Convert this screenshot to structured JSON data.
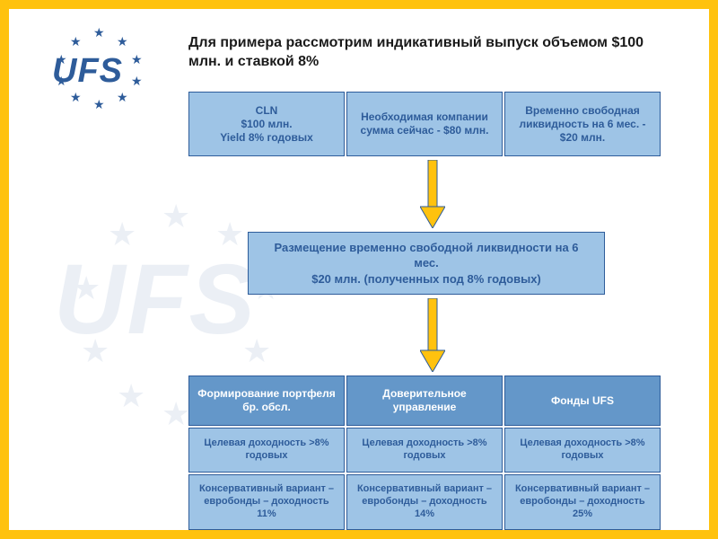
{
  "title": "Для примера рассмотрим индикативный выпуск объемом $100 млн. и ставкой 8%",
  "logo_text": "UFS",
  "colors": {
    "accent": "#ffc20e",
    "primary": "#2e5c9a",
    "box_light": "#9ec4e6",
    "box_dark": "#6497c9",
    "text": "#1a1a1a"
  },
  "row1": [
    {
      "text": "CLN\n$100 млн.\nYield 8% годовых"
    },
    {
      "text": "Необходимая компании сумма сейчас - $80 млн."
    },
    {
      "text": "Временно свободная ликвидность на 6 мес. - $20 млн."
    }
  ],
  "middle": "Размещение временно свободной ликвидности на 6 мес.\n$20 млн. (полученных под 8% годовых)",
  "row3": [
    {
      "text": "Формирование портфеля бр. обсл."
    },
    {
      "text": "Доверительное управление"
    },
    {
      "text": "Фонды UFS"
    }
  ],
  "row4": [
    {
      "text": "Целевая доходность >8% годовых"
    },
    {
      "text": "Целевая доходность >8% годовых"
    },
    {
      "text": "Целевая доходность >8% годовых"
    }
  ],
  "row5": [
    {
      "text": "Консервативный вариант – евробонды – доходность 11%"
    },
    {
      "text": "Консервативный вариант – евробонды – доходность 14%"
    },
    {
      "text": "Консервативный вариант – евробонды – доходность 25%"
    }
  ],
  "diagram": {
    "type": "flowchart",
    "arrow_color": "#ffc20e",
    "arrow_stroke": "#2e5c9a"
  }
}
